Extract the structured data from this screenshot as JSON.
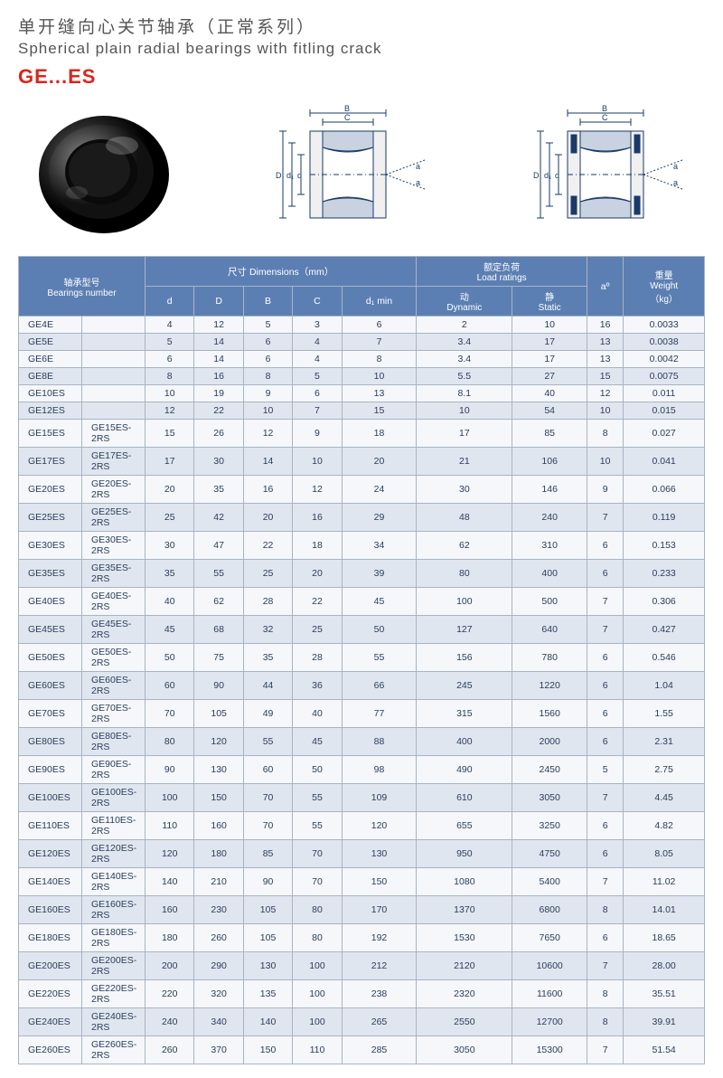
{
  "header": {
    "title_cn": "单开缝向心关节轴承（正常系列）",
    "title_en": "Spherical plain radial bearings with fitling crack",
    "model_code": "GE...ES"
  },
  "diagram_labels": [
    "B",
    "C",
    "D",
    "d1",
    "d",
    "a",
    "a"
  ],
  "table": {
    "headers": {
      "bearings_number_cn": "轴承型号",
      "bearings_number_en": "Bearings number",
      "dimensions_cn": "尺寸",
      "dimensions_en": "Dimensions（mm）",
      "load_ratings_cn": "额定负荷",
      "load_ratings_en": "Load ratings",
      "d": "d",
      "D_cap": "D",
      "B": "B",
      "C": "C",
      "d1min": "d₁ min",
      "dynamic_cn": "动",
      "dynamic_en": "Dynamic",
      "static_cn": "静",
      "static_en": "Static",
      "a_deg": "aº",
      "weight_cn": "重量",
      "weight_en": "Weight",
      "weight_unit": "（kg）"
    },
    "rows": [
      {
        "bn1": "GE4E",
        "bn2": "",
        "d": "4",
        "D": "12",
        "B": "5",
        "C": "3",
        "d1": "6",
        "dyn": "2",
        "sta": "10",
        "a": "16",
        "w": "0.0033"
      },
      {
        "bn1": "GE5E",
        "bn2": "",
        "d": "5",
        "D": "14",
        "B": "6",
        "C": "4",
        "d1": "7",
        "dyn": "3.4",
        "sta": "17",
        "a": "13",
        "w": "0.0038"
      },
      {
        "bn1": "GE6E",
        "bn2": "",
        "d": "6",
        "D": "14",
        "B": "6",
        "C": "4",
        "d1": "8",
        "dyn": "3.4",
        "sta": "17",
        "a": "13",
        "w": "0.0042"
      },
      {
        "bn1": "GE8E",
        "bn2": "",
        "d": "8",
        "D": "16",
        "B": "8",
        "C": "5",
        "d1": "10",
        "dyn": "5.5",
        "sta": "27",
        "a": "15",
        "w": "0.0075"
      },
      {
        "bn1": "GE10ES",
        "bn2": "",
        "d": "10",
        "D": "19",
        "B": "9",
        "C": "6",
        "d1": "13",
        "dyn": "8.1",
        "sta": "40",
        "a": "12",
        "w": "0.011"
      },
      {
        "bn1": "GE12ES",
        "bn2": "",
        "d": "12",
        "D": "22",
        "B": "10",
        "C": "7",
        "d1": "15",
        "dyn": "10",
        "sta": "54",
        "a": "10",
        "w": "0.015"
      },
      {
        "bn1": "GE15ES",
        "bn2": "GE15ES-2RS",
        "d": "15",
        "D": "26",
        "B": "12",
        "C": "9",
        "d1": "18",
        "dyn": "17",
        "sta": "85",
        "a": "8",
        "w": "0.027"
      },
      {
        "bn1": "GE17ES",
        "bn2": "GE17ES-2RS",
        "d": "17",
        "D": "30",
        "B": "14",
        "C": "10",
        "d1": "20",
        "dyn": "21",
        "sta": "106",
        "a": "10",
        "w": "0.041"
      },
      {
        "bn1": "GE20ES",
        "bn2": "GE20ES-2RS",
        "d": "20",
        "D": "35",
        "B": "16",
        "C": "12",
        "d1": "24",
        "dyn": "30",
        "sta": "146",
        "a": "9",
        "w": "0.066"
      },
      {
        "bn1": "GE25ES",
        "bn2": "GE25ES-2RS",
        "d": "25",
        "D": "42",
        "B": "20",
        "C": "16",
        "d1": "29",
        "dyn": "48",
        "sta": "240",
        "a": "7",
        "w": "0.119"
      },
      {
        "bn1": "GE30ES",
        "bn2": "GE30ES-2RS",
        "d": "30",
        "D": "47",
        "B": "22",
        "C": "18",
        "d1": "34",
        "dyn": "62",
        "sta": "310",
        "a": "6",
        "w": "0.153"
      },
      {
        "bn1": "GE35ES",
        "bn2": "GE35ES-2RS",
        "d": "35",
        "D": "55",
        "B": "25",
        "C": "20",
        "d1": "39",
        "dyn": "80",
        "sta": "400",
        "a": "6",
        "w": "0.233"
      },
      {
        "bn1": "GE40ES",
        "bn2": "GE40ES-2RS",
        "d": "40",
        "D": "62",
        "B": "28",
        "C": "22",
        "d1": "45",
        "dyn": "100",
        "sta": "500",
        "a": "7",
        "w": "0.306"
      },
      {
        "bn1": "GE45ES",
        "bn2": "GE45ES-2RS",
        "d": "45",
        "D": "68",
        "B": "32",
        "C": "25",
        "d1": "50",
        "dyn": "127",
        "sta": "640",
        "a": "7",
        "w": "0.427"
      },
      {
        "bn1": "GE50ES",
        "bn2": "GE50ES-2RS",
        "d": "50",
        "D": "75",
        "B": "35",
        "C": "28",
        "d1": "55",
        "dyn": "156",
        "sta": "780",
        "a": "6",
        "w": "0.546"
      },
      {
        "bn1": "GE60ES",
        "bn2": "GE60ES-2RS",
        "d": "60",
        "D": "90",
        "B": "44",
        "C": "36",
        "d1": "66",
        "dyn": "245",
        "sta": "1220",
        "a": "6",
        "w": "1.04"
      },
      {
        "bn1": "GE70ES",
        "bn2": "GE70ES-2RS",
        "d": "70",
        "D": "105",
        "B": "49",
        "C": "40",
        "d1": "77",
        "dyn": "315",
        "sta": "1560",
        "a": "6",
        "w": "1.55"
      },
      {
        "bn1": "GE80ES",
        "bn2": "GE80ES-2RS",
        "d": "80",
        "D": "120",
        "B": "55",
        "C": "45",
        "d1": "88",
        "dyn": "400",
        "sta": "2000",
        "a": "6",
        "w": "2.31"
      },
      {
        "bn1": "GE90ES",
        "bn2": "GE90ES-2RS",
        "d": "90",
        "D": "130",
        "B": "60",
        "C": "50",
        "d1": "98",
        "dyn": "490",
        "sta": "2450",
        "a": "5",
        "w": "2.75"
      },
      {
        "bn1": "GE100ES",
        "bn2": "GE100ES-2RS",
        "d": "100",
        "D": "150",
        "B": "70",
        "C": "55",
        "d1": "109",
        "dyn": "610",
        "sta": "3050",
        "a": "7",
        "w": "4.45"
      },
      {
        "bn1": "GE110ES",
        "bn2": "GE110ES-2RS",
        "d": "110",
        "D": "160",
        "B": "70",
        "C": "55",
        "d1": "120",
        "dyn": "655",
        "sta": "3250",
        "a": "6",
        "w": "4.82"
      },
      {
        "bn1": "GE120ES",
        "bn2": "GE120ES-2RS",
        "d": "120",
        "D": "180",
        "B": "85",
        "C": "70",
        "d1": "130",
        "dyn": "950",
        "sta": "4750",
        "a": "6",
        "w": "8.05"
      },
      {
        "bn1": "GE140ES",
        "bn2": "GE140ES-2RS",
        "d": "140",
        "D": "210",
        "B": "90",
        "C": "70",
        "d1": "150",
        "dyn": "1080",
        "sta": "5400",
        "a": "7",
        "w": "11.02"
      },
      {
        "bn1": "GE160ES",
        "bn2": "GE160ES-2RS",
        "d": "160",
        "D": "230",
        "B": "105",
        "C": "80",
        "d1": "170",
        "dyn": "1370",
        "sta": "6800",
        "a": "8",
        "w": "14.01"
      },
      {
        "bn1": "GE180ES",
        "bn2": "GE180ES-2RS",
        "d": "180",
        "D": "260",
        "B": "105",
        "C": "80",
        "d1": "192",
        "dyn": "1530",
        "sta": "7650",
        "a": "6",
        "w": "18.65"
      },
      {
        "bn1": "GE200ES",
        "bn2": "GE200ES-2RS",
        "d": "200",
        "D": "290",
        "B": "130",
        "C": "100",
        "d1": "212",
        "dyn": "2120",
        "sta": "10600",
        "a": "7",
        "w": "28.00"
      },
      {
        "bn1": "GE220ES",
        "bn2": "GE220ES-2RS",
        "d": "220",
        "D": "320",
        "B": "135",
        "C": "100",
        "d1": "238",
        "dyn": "2320",
        "sta": "11600",
        "a": "8",
        "w": "35.51"
      },
      {
        "bn1": "GE240ES",
        "bn2": "GE240ES-2RS",
        "d": "240",
        "D": "340",
        "B": "140",
        "C": "100",
        "d1": "265",
        "dyn": "2550",
        "sta": "12700",
        "a": "8",
        "w": "39.91"
      },
      {
        "bn1": "GE260ES",
        "bn2": "GE260ES-2RS",
        "d": "260",
        "D": "370",
        "B": "150",
        "C": "110",
        "d1": "285",
        "dyn": "3050",
        "sta": "15300",
        "a": "7",
        "w": "51.54"
      }
    ]
  },
  "style": {
    "header_bg": "#5c7fb3",
    "row_even_bg": "#e0e6ef",
    "row_odd_bg": "#f5f7fa",
    "border_color": "#a8b4c4",
    "title_red": "#d9261c",
    "text_color": "#2a3d5c"
  }
}
